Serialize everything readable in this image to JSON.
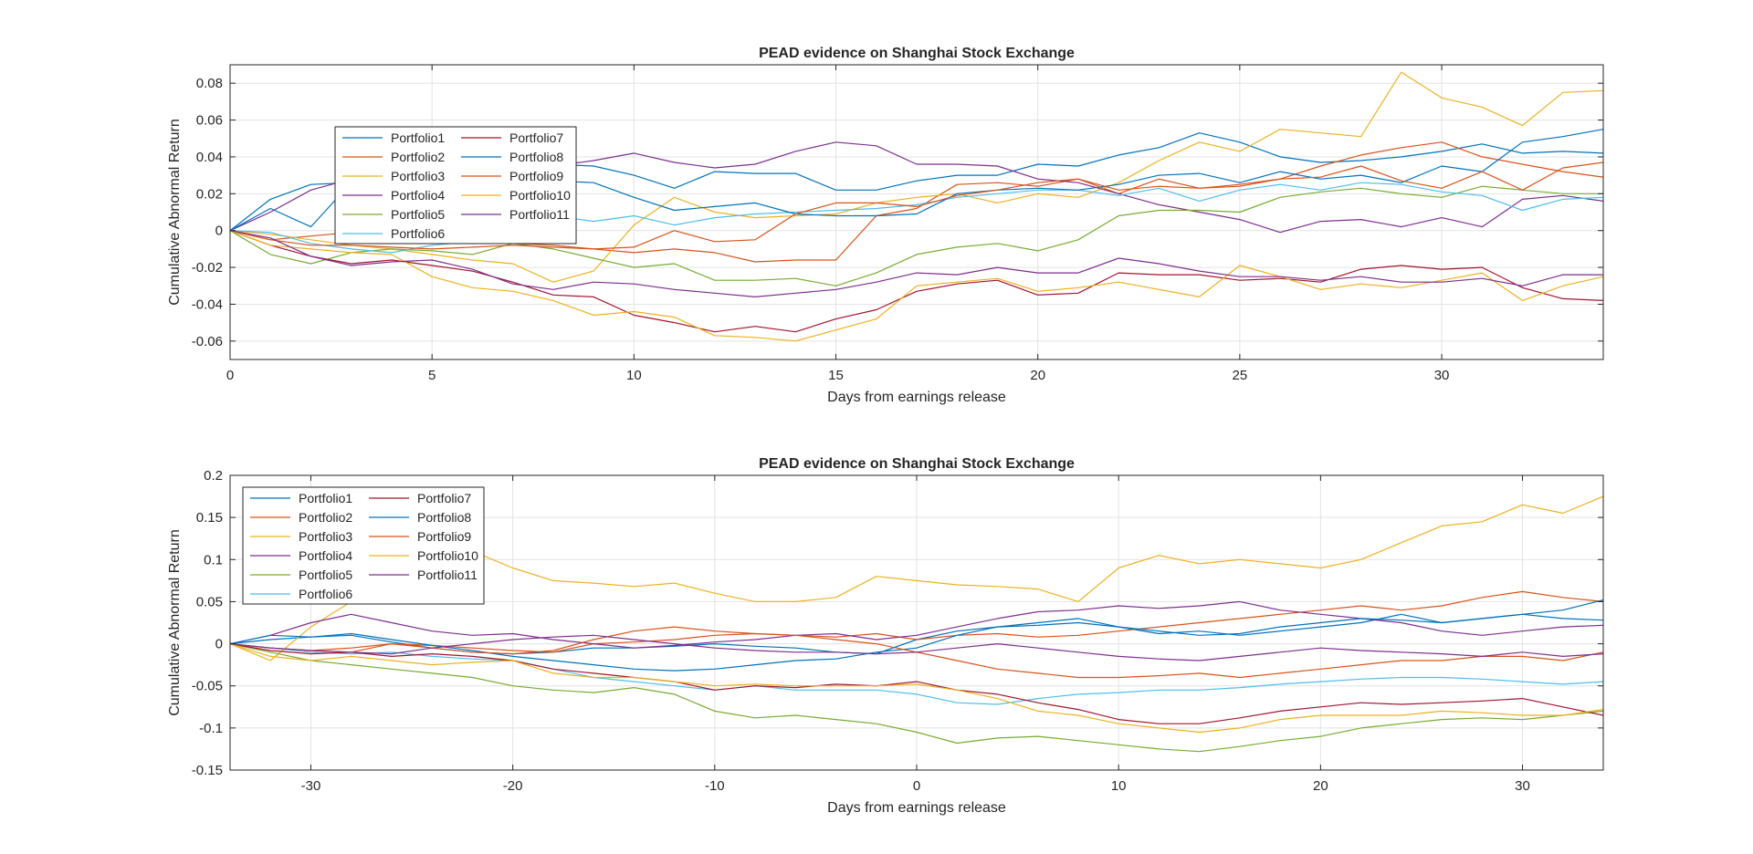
{
  "figure": {
    "background": "#ffffff"
  },
  "colors": [
    "#0072BD",
    "#D95319",
    "#EDB120",
    "#7E2F8E",
    "#77AC30",
    "#4DBEEE",
    "#A2142F",
    "#0072BD",
    "#D95319",
    "#EDB120",
    "#7E2F8E"
  ],
  "chart_data": [
    {
      "type": "line",
      "title": "PEAD evidence on Shanghai Stock Exchange",
      "xlabel": "Days from earnings release",
      "ylabel": "Cumulative Abnormal Return",
      "xlim": [
        0,
        34
      ],
      "ylim": [
        -0.07,
        0.09
      ],
      "xticks": [
        0,
        5,
        10,
        15,
        20,
        25,
        30
      ],
      "xtick_labels": [
        "0",
        "5",
        "10",
        "15",
        "20",
        "25",
        "30"
      ],
      "yticks": [
        -0.06,
        -0.04,
        -0.02,
        0,
        0.02,
        0.04,
        0.06,
        0.08
      ],
      "ytick_labels": [
        "-0.06",
        "-0.04",
        "-0.02",
        "0",
        "0.02",
        "0.04",
        "0.06",
        "0.08"
      ],
      "grid": true,
      "legend_position": "upper-left",
      "legend_columns": 2,
      "x": [
        0,
        1,
        2,
        3,
        4,
        5,
        6,
        7,
        8,
        9,
        10,
        11,
        12,
        13,
        14,
        15,
        16,
        17,
        18,
        19,
        20,
        21,
        22,
        23,
        24,
        25,
        26,
        27,
        28,
        29,
        30,
        31,
        32,
        33,
        34
      ],
      "series": [
        {
          "name": "Portfolio1",
          "values": [
            0,
            0.017,
            0.025,
            0.026,
            0.03,
            0.032,
            0.034,
            0.036,
            0.036,
            0.035,
            0.03,
            0.023,
            0.032,
            0.031,
            0.031,
            0.022,
            0.022,
            0.027,
            0.03,
            0.03,
            0.036,
            0.035,
            0.041,
            0.045,
            0.053,
            0.048,
            0.04,
            0.037,
            0.038,
            0.04,
            0.043,
            0.047,
            0.042,
            0.043,
            0.042
          ]
        },
        {
          "name": "Portfolio2",
          "values": [
            0,
            -0.005,
            -0.003,
            -0.001,
            -0.002,
            -0.004,
            -0.006,
            -0.007,
            -0.008,
            -0.01,
            -0.012,
            -0.01,
            -0.012,
            -0.017,
            -0.016,
            -0.016,
            0.008,
            0.012,
            0.025,
            0.026,
            0.024,
            0.028,
            0.02,
            0.028,
            0.023,
            0.025,
            0.028,
            0.035,
            0.041,
            0.045,
            0.048,
            0.04,
            0.036,
            0.032,
            0.029
          ]
        },
        {
          "name": "Portfolio3",
          "values": [
            0,
            -0.002,
            -0.005,
            -0.008,
            -0.01,
            -0.013,
            -0.016,
            -0.018,
            -0.028,
            -0.022,
            0.003,
            0.018,
            0.01,
            0.007,
            0.008,
            0.009,
            0.015,
            0.018,
            0.02,
            0.015,
            0.02,
            0.018,
            0.026,
            0.038,
            0.048,
            0.043,
            0.055,
            0.053,
            0.051,
            0.086,
            0.072,
            0.067,
            0.057,
            0.075,
            0.076
          ]
        },
        {
          "name": "Portfolio4",
          "values": [
            0,
            0.01,
            0.022,
            0.028,
            0.03,
            0.032,
            0.034,
            0.036,
            0.035,
            0.038,
            0.042,
            0.037,
            0.034,
            0.036,
            0.043,
            0.048,
            0.046,
            0.036,
            0.036,
            0.035,
            0.028,
            0.026,
            0.02,
            0.014,
            0.01,
            0.006,
            -0.001,
            0.005,
            0.006,
            0.002,
            0.007,
            0.002,
            0.017,
            0.019,
            0.016
          ]
        },
        {
          "name": "Portfolio5",
          "values": [
            0,
            -0.013,
            -0.018,
            -0.012,
            -0.01,
            -0.011,
            -0.013,
            -0.007,
            -0.01,
            -0.015,
            -0.02,
            -0.018,
            -0.027,
            -0.027,
            -0.026,
            -0.03,
            -0.023,
            -0.013,
            -0.009,
            -0.007,
            -0.011,
            -0.005,
            0.008,
            0.011,
            0.011,
            0.01,
            0.018,
            0.021,
            0.023,
            0.02,
            0.018,
            0.024,
            0.022,
            0.02,
            0.02
          ]
        },
        {
          "name": "Portfolio6",
          "values": [
            0,
            -0.001,
            -0.007,
            -0.01,
            -0.012,
            -0.008,
            -0.006,
            -0.004,
            0.008,
            0.005,
            0.008,
            0.003,
            0.007,
            0.009,
            0.01,
            0.011,
            0.012,
            0.014,
            0.018,
            0.02,
            0.022,
            0.022,
            0.019,
            0.023,
            0.016,
            0.022,
            0.025,
            0.022,
            0.026,
            0.025,
            0.021,
            0.019,
            0.011,
            0.017,
            0.018
          ]
        },
        {
          "name": "Portfolio7",
          "values": [
            0,
            -0.008,
            -0.014,
            -0.018,
            -0.016,
            -0.019,
            -0.022,
            -0.028,
            -0.035,
            -0.036,
            -0.046,
            -0.05,
            -0.055,
            -0.052,
            -0.055,
            -0.048,
            -0.043,
            -0.033,
            -0.029,
            -0.027,
            -0.035,
            -0.034,
            -0.023,
            -0.024,
            -0.024,
            -0.027,
            -0.026,
            -0.028,
            -0.021,
            -0.019,
            -0.021,
            -0.02,
            -0.031,
            -0.037,
            -0.038
          ]
        },
        {
          "name": "Portfolio8",
          "values": [
            0,
            0.012,
            0.002,
            0.026,
            0.03,
            0.03,
            0.031,
            0.028,
            0.027,
            0.026,
            0.018,
            0.011,
            0.013,
            0.015,
            0.009,
            0.008,
            0.008,
            0.009,
            0.02,
            0.022,
            0.023,
            0.022,
            0.025,
            0.03,
            0.031,
            0.026,
            0.032,
            0.028,
            0.03,
            0.026,
            0.035,
            0.032,
            0.048,
            0.051,
            0.055
          ]
        },
        {
          "name": "Portfolio9",
          "values": [
            0,
            -0.005,
            -0.008,
            -0.008,
            -0.009,
            -0.01,
            -0.009,
            -0.008,
            -0.009,
            -0.01,
            -0.009,
            0.0,
            -0.006,
            -0.005,
            0.009,
            0.015,
            0.015,
            0.013,
            0.019,
            0.022,
            0.026,
            0.028,
            0.022,
            0.024,
            0.023,
            0.024,
            0.028,
            0.029,
            0.035,
            0.027,
            0.023,
            0.032,
            0.022,
            0.034,
            0.037
          ]
        },
        {
          "name": "Portfolio10",
          "values": [
            0,
            -0.008,
            -0.01,
            -0.012,
            -0.013,
            -0.025,
            -0.031,
            -0.033,
            -0.038,
            -0.046,
            -0.044,
            -0.047,
            -0.057,
            -0.058,
            -0.06,
            -0.054,
            -0.048,
            -0.03,
            -0.028,
            -0.026,
            -0.033,
            -0.031,
            -0.028,
            -0.032,
            -0.036,
            -0.019,
            -0.025,
            -0.032,
            -0.029,
            -0.031,
            -0.027,
            -0.023,
            -0.038,
            -0.03,
            -0.025
          ]
        },
        {
          "name": "Portfolio11",
          "values": [
            0,
            -0.004,
            -0.014,
            -0.019,
            -0.017,
            -0.016,
            -0.021,
            -0.029,
            -0.032,
            -0.028,
            -0.029,
            -0.032,
            -0.034,
            -0.036,
            -0.034,
            -0.032,
            -0.028,
            -0.023,
            -0.024,
            -0.02,
            -0.023,
            -0.023,
            -0.015,
            -0.018,
            -0.022,
            -0.025,
            -0.025,
            -0.027,
            -0.025,
            -0.028,
            -0.028,
            -0.026,
            -0.03,
            -0.024,
            -0.024
          ]
        }
      ]
    },
    {
      "type": "line",
      "title": "PEAD evidence on Shanghai Stock Exchange",
      "xlabel": "Days from earnings release",
      "ylabel": "Cumulative Abnormal Return",
      "xlim": [
        -34,
        34
      ],
      "ylim": [
        -0.15,
        0.2
      ],
      "xticks": [
        -30,
        -20,
        -10,
        0,
        10,
        20,
        30
      ],
      "xtick_labels": [
        "-30",
        "-20",
        "-10",
        "0",
        "10",
        "20",
        "30"
      ],
      "yticks": [
        -0.15,
        -0.1,
        -0.05,
        0,
        0.05,
        0.1,
        0.15,
        0.2
      ],
      "ytick_labels": [
        "-0.15",
        "-0.1",
        "-0.05",
        "0",
        "0.05",
        "0.1",
        "0.15",
        "0.2"
      ],
      "grid": true,
      "legend_position": "upper-left",
      "legend_columns": 2,
      "x": [
        -34,
        -32,
        -30,
        -28,
        -26,
        -24,
        -22,
        -20,
        -18,
        -16,
        -14,
        -12,
        -10,
        -8,
        -6,
        -4,
        -2,
        0,
        2,
        4,
        6,
        8,
        10,
        12,
        14,
        16,
        18,
        20,
        22,
        24,
        26,
        28,
        30,
        32,
        34
      ],
      "series": [
        {
          "name": "Portfolio1",
          "values": [
            0,
            0.005,
            0.008,
            0.01,
            0.002,
            -0.005,
            -0.01,
            -0.012,
            -0.01,
            -0.005,
            -0.005,
            -0.003,
            0.0,
            -0.003,
            -0.005,
            -0.01,
            -0.012,
            0.005,
            0.015,
            0.02,
            0.025,
            0.03,
            0.02,
            0.012,
            0.015,
            0.01,
            0.015,
            0.02,
            0.025,
            0.035,
            0.025,
            0.03,
            0.035,
            0.03,
            0.028
          ]
        },
        {
          "name": "Portfolio2",
          "values": [
            0,
            -0.005,
            -0.008,
            -0.01,
            0.0,
            -0.002,
            -0.005,
            -0.008,
            -0.01,
            0.0,
            0.002,
            0.005,
            0.01,
            0.012,
            0.01,
            0.008,
            0.012,
            0.005,
            0.01,
            0.012,
            0.008,
            0.01,
            0.015,
            0.02,
            0.025,
            0.03,
            0.035,
            0.04,
            0.045,
            0.04,
            0.045,
            0.055,
            0.062,
            0.055,
            0.05
          ]
        },
        {
          "name": "Portfolio3",
          "values": [
            0,
            -0.02,
            0.02,
            0.05,
            0.09,
            0.1,
            0.11,
            0.09,
            0.075,
            0.072,
            0.068,
            0.072,
            0.06,
            0.05,
            0.05,
            0.055,
            0.08,
            0.075,
            0.07,
            0.068,
            0.065,
            0.05,
            0.09,
            0.105,
            0.095,
            0.1,
            0.095,
            0.09,
            0.1,
            0.12,
            0.14,
            0.145,
            0.165,
            0.155,
            0.175
          ]
        },
        {
          "name": "Portfolio4",
          "values": [
            0,
            0.01,
            0.025,
            0.035,
            0.025,
            0.015,
            0.01,
            0.012,
            0.005,
            0.0,
            -0.005,
            -0.002,
            0.002,
            0.005,
            0.01,
            0.012,
            0.005,
            0.01,
            0.02,
            0.03,
            0.038,
            0.04,
            0.045,
            0.042,
            0.045,
            0.05,
            0.04,
            0.035,
            0.03,
            0.025,
            0.015,
            0.01,
            0.015,
            0.02,
            0.022
          ]
        },
        {
          "name": "Portfolio5",
          "values": [
            0,
            -0.01,
            -0.02,
            -0.025,
            -0.03,
            -0.035,
            -0.04,
            -0.05,
            -0.055,
            -0.058,
            -0.052,
            -0.06,
            -0.08,
            -0.088,
            -0.085,
            -0.09,
            -0.095,
            -0.105,
            -0.118,
            -0.112,
            -0.11,
            -0.115,
            -0.12,
            -0.125,
            -0.128,
            -0.122,
            -0.115,
            -0.11,
            -0.1,
            -0.095,
            -0.09,
            -0.088,
            -0.09,
            -0.085,
            -0.08
          ]
        },
        {
          "name": "Portfolio6",
          "values": [
            0,
            -0.005,
            -0.01,
            -0.012,
            -0.01,
            -0.015,
            -0.018,
            -0.02,
            -0.03,
            -0.04,
            -0.045,
            -0.05,
            -0.055,
            -0.05,
            -0.055,
            -0.055,
            -0.055,
            -0.06,
            -0.07,
            -0.072,
            -0.065,
            -0.06,
            -0.058,
            -0.055,
            -0.055,
            -0.052,
            -0.048,
            -0.045,
            -0.042,
            -0.04,
            -0.04,
            -0.042,
            -0.045,
            -0.048,
            -0.045
          ]
        },
        {
          "name": "Portfolio7",
          "values": [
            0,
            -0.008,
            -0.012,
            -0.01,
            -0.015,
            -0.012,
            -0.015,
            -0.02,
            -0.03,
            -0.035,
            -0.04,
            -0.045,
            -0.055,
            -0.05,
            -0.052,
            -0.048,
            -0.05,
            -0.045,
            -0.055,
            -0.06,
            -0.07,
            -0.078,
            -0.09,
            -0.095,
            -0.095,
            -0.088,
            -0.08,
            -0.075,
            -0.07,
            -0.072,
            -0.07,
            -0.068,
            -0.065,
            -0.075,
            -0.085
          ]
        },
        {
          "name": "Portfolio8",
          "values": [
            0,
            0.01,
            0.008,
            0.012,
            0.005,
            -0.002,
            -0.008,
            -0.015,
            -0.02,
            -0.025,
            -0.03,
            -0.032,
            -0.03,
            -0.025,
            -0.02,
            -0.018,
            -0.01,
            -0.005,
            0.01,
            0.02,
            0.022,
            0.025,
            0.02,
            0.015,
            0.01,
            0.012,
            0.02,
            0.025,
            0.03,
            0.028,
            0.025,
            0.03,
            0.035,
            0.04,
            0.052
          ]
        },
        {
          "name": "Portfolio9",
          "values": [
            0,
            -0.005,
            -0.008,
            -0.005,
            0.0,
            -0.005,
            -0.01,
            -0.012,
            -0.008,
            0.005,
            0.015,
            0.02,
            0.015,
            0.012,
            0.01,
            0.005,
            0.0,
            -0.01,
            -0.02,
            -0.03,
            -0.035,
            -0.04,
            -0.04,
            -0.038,
            -0.035,
            -0.04,
            -0.035,
            -0.03,
            -0.025,
            -0.02,
            -0.02,
            -0.015,
            -0.015,
            -0.02,
            -0.01
          ]
        },
        {
          "name": "Portfolio10",
          "values": [
            0,
            -0.015,
            -0.02,
            -0.015,
            -0.02,
            -0.025,
            -0.022,
            -0.02,
            -0.035,
            -0.04,
            -0.04,
            -0.045,
            -0.05,
            -0.048,
            -0.05,
            -0.05,
            -0.05,
            -0.048,
            -0.055,
            -0.065,
            -0.08,
            -0.085,
            -0.095,
            -0.1,
            -0.105,
            -0.1,
            -0.09,
            -0.085,
            -0.085,
            -0.085,
            -0.08,
            -0.082,
            -0.085,
            -0.085,
            -0.078
          ]
        },
        {
          "name": "Portfolio11",
          "values": [
            0,
            -0.005,
            -0.008,
            -0.01,
            -0.012,
            -0.005,
            0.0,
            0.005,
            0.008,
            0.01,
            0.005,
            0.0,
            -0.005,
            -0.008,
            -0.01,
            -0.01,
            -0.012,
            -0.01,
            -0.005,
            0.0,
            -0.005,
            -0.01,
            -0.015,
            -0.018,
            -0.02,
            -0.015,
            -0.01,
            -0.005,
            -0.008,
            -0.01,
            -0.012,
            -0.015,
            -0.01,
            -0.015,
            -0.012
          ]
        }
      ]
    }
  ]
}
